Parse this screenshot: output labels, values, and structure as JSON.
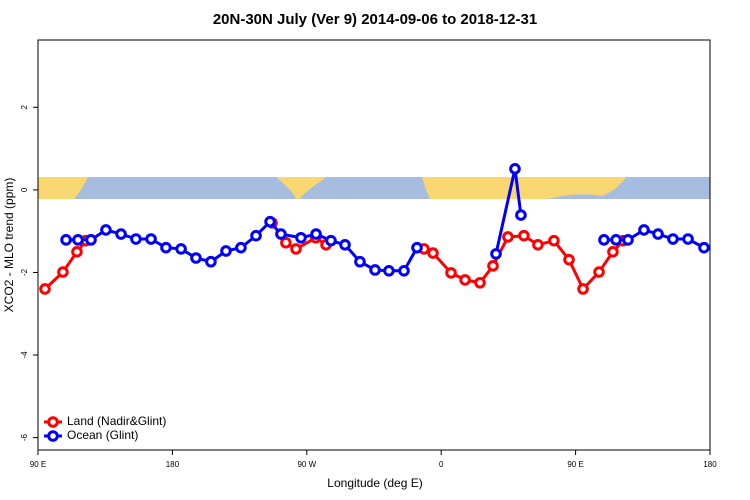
{
  "chart_data": {
    "type": "line",
    "title": "20N-30N July (Ver 9)   2014-09-06 to 2018-12-31",
    "x_label": "Longitude (deg E)",
    "y_label": "XCO2 - MLO trend (ppm)",
    "xlim": [
      90,
      540
    ],
    "ylim": [
      -6.3,
      3.63
    ],
    "xticks": [
      {
        "value": 90,
        "label": "90 E"
      },
      180,
      {
        "value": 270,
        "label": "90 W"
      },
      {
        "value": 360,
        "label": "0"
      },
      {
        "value": 450,
        "label": "90 E"
      },
      {
        "value": 540,
        "label": "180"
      }
    ],
    "yticks": [
      2,
      0,
      -2,
      -4,
      -6
    ],
    "legend": "bottom-left",
    "series": [
      {
        "name": "Land (Nadir&Glint)",
        "color": "#ff0000",
        "x": [
          94.7,
          106.7,
          116.1,
          122.0,
          null,
          246.7,
          256.0,
          262.8,
          276.0,
          282.9,
          null,
          348.5,
          354.5,
          366.6,
          376.0,
          386.0,
          394.7,
          404.7,
          415.4,
          424.8,
          435.5,
          445.6,
          455.0,
          465.7,
          475.0,
          481.8
        ],
        "values": [
          -2.4,
          -1.99,
          -1.5,
          -1.23,
          null,
          -0.8,
          -1.28,
          -1.43,
          -1.16,
          -1.33,
          null,
          -1.43,
          -1.53,
          -2.01,
          -2.18,
          -2.25,
          -1.84,
          -1.14,
          -1.11,
          -1.33,
          -1.23,
          -1.69,
          -2.4,
          -1.99,
          -1.5,
          -1.23
        ]
      },
      {
        "name": "Ocean (Glint)",
        "color": "#0000ff",
        "x": [
          108.8,
          116.8,
          125.5,
          135.5,
          145.6,
          155.6,
          165.7,
          175.7,
          185.8,
          195.8,
          205.8,
          215.9,
          225.9,
          236.0,
          245.4,
          252.7,
          266.1,
          276.2,
          286.2,
          295.6,
          305.6,
          315.7,
          325.0,
          335.1,
          343.8,
          null,
          396.7,
          409.4,
          413.4,
          null,
          469.0,
          477.1,
          485.1,
          495.8,
          505.2,
          515.2,
          525.3,
          536.0
        ],
        "values": [
          -1.21,
          -1.21,
          -1.21,
          -0.97,
          -1.07,
          -1.19,
          -1.19,
          -1.4,
          -1.43,
          -1.65,
          -1.74,
          -1.48,
          -1.4,
          -1.11,
          -0.77,
          -1.07,
          -1.16,
          -1.07,
          -1.23,
          -1.33,
          -1.74,
          -1.94,
          -1.96,
          -1.96,
          -1.4,
          null,
          -1.55,
          0.51,
          -0.61,
          null,
          -1.21,
          -1.21,
          -1.21,
          -0.97,
          -1.07,
          -1.19,
          -1.19,
          -1.4
        ]
      }
    ]
  }
}
